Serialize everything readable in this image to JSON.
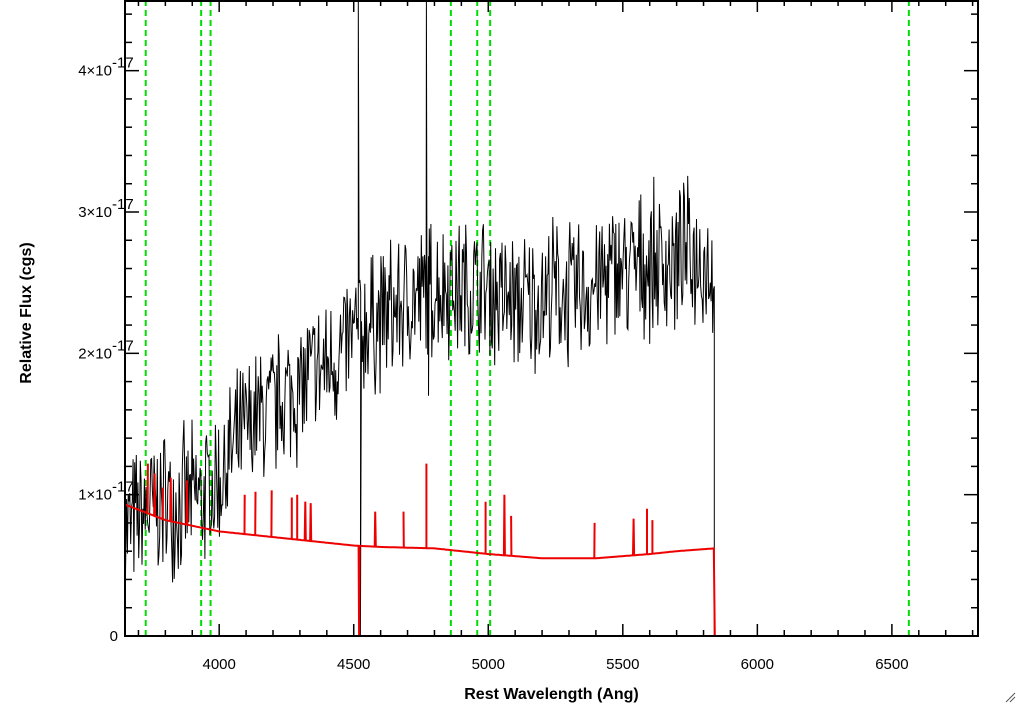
{
  "chart_data": {
    "type": "line",
    "title": "",
    "xlabel": "Rest Wavelength (Ang)",
    "ylabel": "Relative Flux (cgs)",
    "xlim": [
      3650,
      6820
    ],
    "ylim": [
      0,
      4.5e-17
    ],
    "x_ticks": [
      {
        "value": 4000,
        "label": "4000"
      },
      {
        "value": 4500,
        "label": "4500"
      },
      {
        "value": 5000,
        "label": "5000"
      },
      {
        "value": 5500,
        "label": "5500"
      },
      {
        "value": 6000,
        "label": "6000"
      },
      {
        "value": 6500,
        "label": "6500"
      }
    ],
    "y_ticks": [
      {
        "value": 0,
        "label": "0",
        "exp": ""
      },
      {
        "value": 1e-17,
        "label": "1×10",
        "exp": "-17"
      },
      {
        "value": 2e-17,
        "label": "2×10",
        "exp": "-17"
      },
      {
        "value": 3e-17,
        "label": "3×10",
        "exp": "-17"
      },
      {
        "value": 4e-17,
        "label": "4×10",
        "exp": "-17"
      }
    ],
    "grid": false,
    "vertical_markers": {
      "color": "#00dd00",
      "style": "dashed",
      "x": [
        3727,
        3933,
        3968,
        4861,
        4959,
        5007,
        6563
      ]
    },
    "series": [
      {
        "color": "#000000",
        "style": "noisy spectrum",
        "x": [
          3650,
          3700,
          3750,
          3800,
          3850,
          3900,
          3950,
          4000,
          4050,
          4100,
          4150,
          4200,
          4250,
          4300,
          4350,
          4400,
          4450,
          4500,
          4550,
          4600,
          4650,
          4700,
          4750,
          4800,
          4850,
          4900,
          4950,
          5000,
          5050,
          5100,
          5150,
          5200,
          5250,
          5300,
          5350,
          5400,
          5450,
          5500,
          5550,
          5600,
          5650,
          5700,
          5750,
          5800,
          5840
        ],
        "y": [
          7.5e-18,
          8.2e-18,
          9e-18,
          9.5e-18,
          9.5e-18,
          9.5e-18,
          1e-17,
          1.1e-17,
          1.3e-17,
          1.45e-17,
          1.55e-17,
          1.6e-17,
          1.7e-17,
          1.75e-17,
          1.85e-17,
          1.9e-17,
          2e-17,
          2.1e-17,
          2.2e-17,
          2.25e-17,
          2.3e-17,
          2.35e-17,
          2.4e-17,
          2.45e-17,
          2.5e-17,
          2.45e-17,
          2.45e-17,
          2.45e-17,
          2.4e-17,
          2.35e-17,
          2.35e-17,
          2.4e-17,
          2.45e-17,
          2.4e-17,
          2.45e-17,
          2.5e-17,
          2.55e-17,
          2.6e-17,
          2.6e-17,
          2.65e-17,
          2.65e-17,
          2.65e-17,
          2.7e-17,
          2.65e-17,
          2.6e-17
        ],
        "noise_amplitude": 5e-18,
        "spikes": [
          {
            "x": 4517,
            "y": 4.5e-17
          },
          {
            "x": 4525,
            "y": 0
          },
          {
            "x": 4770,
            "y": 4.5e-17
          },
          {
            "x": 4778,
            "y": 1.7e-17
          }
        ]
      },
      {
        "color": "#ee0000",
        "style": "model continuum",
        "x": [
          3650,
          3800,
          4000,
          4200,
          4400,
          4500,
          4600,
          4800,
          5000,
          5200,
          5400,
          5600,
          5700,
          5840,
          5842,
          6820
        ],
        "y": [
          9.3e-18,
          8.2e-18,
          7.4e-18,
          7e-18,
          6.6e-18,
          6.4e-18,
          6.3e-18,
          6.2e-18,
          5.8e-18,
          5.5e-18,
          5.5e-18,
          5.8e-18,
          6e-18,
          6.2e-18,
          0,
          0
        ],
        "spikes": [
          {
            "x": 3735,
            "y": 1.22e-17
          },
          {
            "x": 3760,
            "y": 1.15e-17
          },
          {
            "x": 3790,
            "y": 1.05e-17
          },
          {
            "x": 3820,
            "y": 1.12e-17
          },
          {
            "x": 3880,
            "y": 1.1e-17
          },
          {
            "x": 4095,
            "y": 1e-17
          },
          {
            "x": 4135,
            "y": 1.02e-17
          },
          {
            "x": 4195,
            "y": 1.03e-17
          },
          {
            "x": 4270,
            "y": 9.8e-18
          },
          {
            "x": 4290,
            "y": 1e-17
          },
          {
            "x": 4320,
            "y": 9.5e-18
          },
          {
            "x": 4340,
            "y": 9.4e-18
          },
          {
            "x": 4520,
            "y": 0
          },
          {
            "x": 4580,
            "y": 8.8e-18
          },
          {
            "x": 4685,
            "y": 8.8e-18
          },
          {
            "x": 4770,
            "y": 1.22e-17
          },
          {
            "x": 4990,
            "y": 9.5e-18
          },
          {
            "x": 5060,
            "y": 1e-17
          },
          {
            "x": 5085,
            "y": 8.5e-18
          },
          {
            "x": 5395,
            "y": 8e-18
          },
          {
            "x": 5540,
            "y": 8.3e-18
          },
          {
            "x": 5590,
            "y": 9e-18
          },
          {
            "x": 5610,
            "y": 8.2e-18
          }
        ]
      }
    ]
  }
}
